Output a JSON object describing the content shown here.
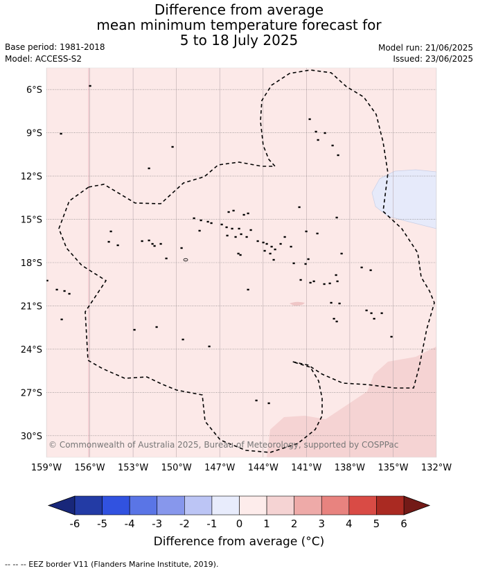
{
  "title_lines": [
    "Difference from average",
    "mean minimum temperature forecast for",
    "5 to 18 July 2025"
  ],
  "meta_left": [
    "Base period: 1981-2018",
    "Model: ACCESS-S2"
  ],
  "meta_right": [
    "Model run: 21/06/2025",
    "Issued: 23/06/2025"
  ],
  "map": {
    "lon_range": [
      -159,
      -132
    ],
    "lat_range": [
      -31.5,
      -4.5
    ],
    "lon_ticks": [
      {
        "value": -159,
        "label": "159°W"
      },
      {
        "value": -156,
        "label": "156°W"
      },
      {
        "value": -153,
        "label": "153°W"
      },
      {
        "value": -150,
        "label": "150°W"
      },
      {
        "value": -147,
        "label": "147°W"
      },
      {
        "value": -144,
        "label": "144°W"
      },
      {
        "value": -141,
        "label": "141°W"
      },
      {
        "value": -138,
        "label": "138°W"
      },
      {
        "value": -135,
        "label": "135°W"
      },
      {
        "value": -132,
        "label": "132°W"
      }
    ],
    "lat_ticks": [
      {
        "value": -6,
        "label": "6°S"
      },
      {
        "value": -9,
        "label": "9°S"
      },
      {
        "value": -12,
        "label": "12°S"
      },
      {
        "value": -15,
        "label": "15°S"
      },
      {
        "value": -18,
        "label": "18°S"
      },
      {
        "value": -21,
        "label": "21°S"
      },
      {
        "value": -24,
        "label": "24°S"
      },
      {
        "value": -27,
        "label": "27°S"
      },
      {
        "value": -30,
        "label": "30°S"
      }
    ],
    "background_color": "#fce9e8",
    "warm_color": "#f5d3d3",
    "cool_color": "#e6eafa",
    "copyright": "© Commonwealth of Australia 2025, Bureau of Meteorology, supported by COSPPac"
  },
  "colorbar": {
    "ticks": [
      "-6",
      "-5",
      "-4",
      "-3",
      "-2",
      "-1",
      "0",
      "1",
      "2",
      "3",
      "4",
      "5",
      "6"
    ],
    "colors": [
      "#233ba5",
      "#3152e0",
      "#5a75e6",
      "#8797ec",
      "#bcc5f5",
      "#e8ecfc",
      "#fdeceb",
      "#f5d3d3",
      "#eeaaa8",
      "#e8837f",
      "#d94b45",
      "#aa2a22"
    ],
    "low_extend_color": "#18277a",
    "high_extend_color": "#731a17",
    "title": "Difference from average (°C)"
  },
  "footnote": "-- -- -- EEZ border V11 (Flanders Marine Institute, 2019)."
}
